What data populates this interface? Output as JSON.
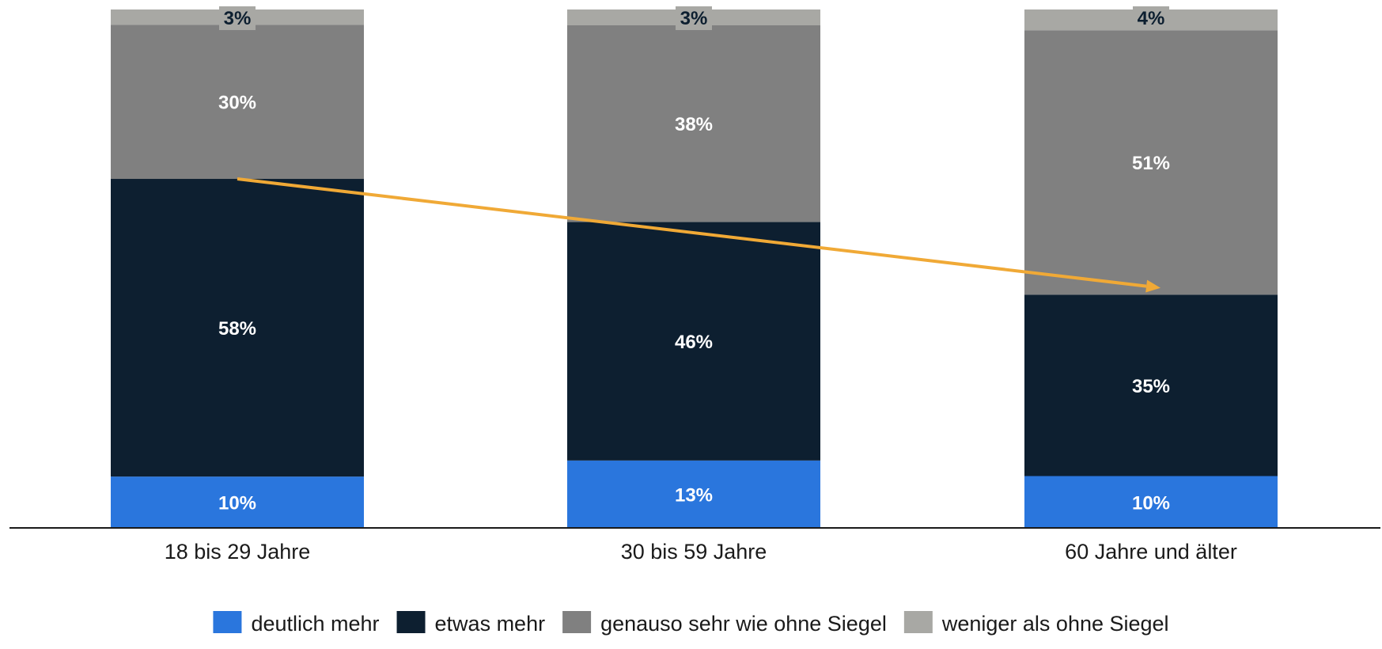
{
  "chart_data": {
    "type": "bar",
    "stacked": true,
    "categories": [
      "18 bis 29 Jahre",
      "30 bis 59 Jahre",
      "60 Jahre und älter"
    ],
    "series": [
      {
        "name": "deutlich mehr",
        "values": [
          10,
          13,
          10
        ],
        "labels": [
          "10%",
          "13%",
          "10%"
        ],
        "color": "#2a76dd",
        "label_color": "#ffffff"
      },
      {
        "name": "etwas mehr",
        "values": [
          58,
          46,
          35
        ],
        "labels": [
          "58%",
          "46%",
          "35%"
        ],
        "color": "#0d1f30",
        "label_color": "#ffffff"
      },
      {
        "name": "genauso sehr wie ohne Siegel",
        "values": [
          30,
          38,
          51
        ],
        "labels": [
          "30%",
          "38%",
          "51%"
        ],
        "color": "#808080",
        "label_color": "#ffffff"
      },
      {
        "name": "weniger als ohne Siegel",
        "values": [
          3,
          3,
          4
        ],
        "labels": [
          "3%",
          "3%",
          "4%"
        ],
        "color": "#a8a8a4",
        "label_color": "#0d1f30"
      }
    ],
    "ylim": [
      0,
      100
    ],
    "legend": "bottom-center",
    "grid": false,
    "annotation": {
      "type": "trend-arrow",
      "color": "#f0a936",
      "from": {
        "category": "18 bis 29 Jahre",
        "value": 68
      },
      "to": {
        "category": "60 Jahre und älter",
        "value": 46
      }
    }
  }
}
